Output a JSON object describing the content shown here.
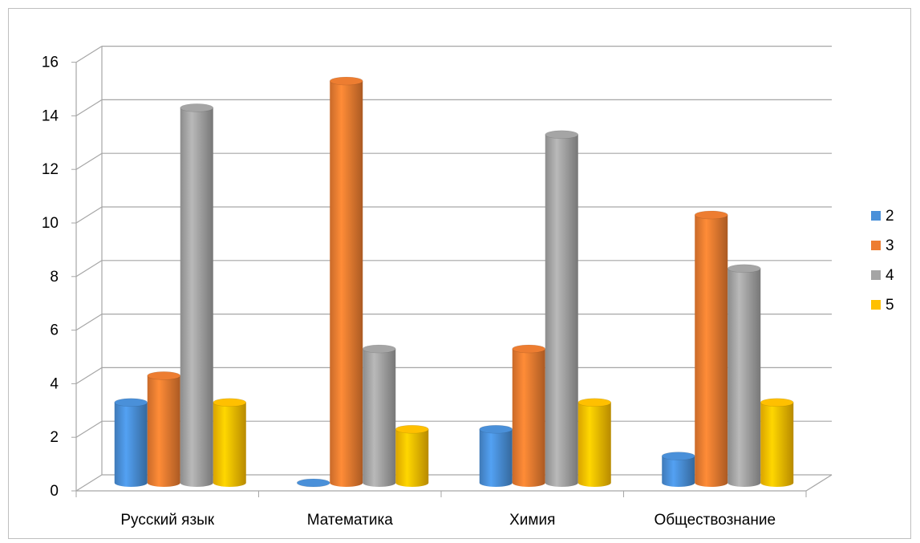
{
  "chart_data": {
    "type": "bar",
    "style": "3d-cylinder",
    "categories": [
      "Русский язык",
      "Математика",
      "Химия",
      "Обществознание"
    ],
    "series": [
      {
        "name": "2",
        "color": "#4a90d9",
        "values": [
          3,
          0,
          2,
          1
        ]
      },
      {
        "name": "3",
        "color": "#ed7d31",
        "values": [
          4,
          15,
          5,
          10
        ]
      },
      {
        "name": "4",
        "color": "#a5a5a5",
        "values": [
          14,
          5,
          13,
          8
        ]
      },
      {
        "name": "5",
        "color": "#ffc000",
        "values": [
          3,
          2,
          3,
          3
        ]
      }
    ],
    "y_ticks": [
      "0",
      "2",
      "4",
      "6",
      "8",
      "10",
      "12",
      "14",
      "16"
    ],
    "ylim": [
      0,
      16
    ],
    "grid": true,
    "legend": "right"
  }
}
